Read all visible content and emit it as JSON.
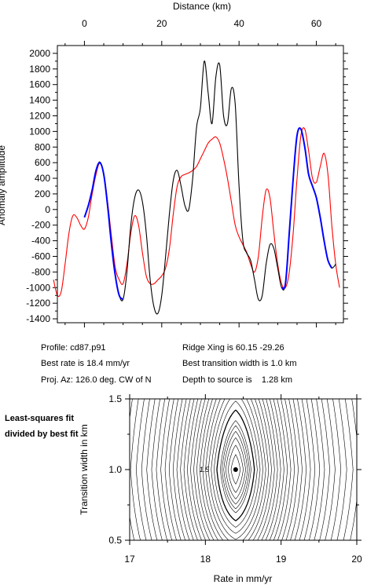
{
  "chart_data": [
    {
      "type": "line",
      "title": "",
      "xlabel": "Distance (km)",
      "ylabel": "Anomaly amplitude",
      "xlim": [
        -7,
        67
      ],
      "ylim": [
        -1450,
        2100
      ],
      "xticks": [
        0,
        20,
        40,
        60
      ],
      "yticks": [
        -1400,
        -1200,
        -1000,
        -800,
        -600,
        -400,
        -200,
        0,
        200,
        400,
        600,
        800,
        1000,
        1200,
        1400,
        1600,
        1800,
        2000
      ],
      "grid": false,
      "colors": {
        "observed": "#000000",
        "model": "#ff0000",
        "fit_window": "#0000ff"
      },
      "series": [
        {
          "id": "observed",
          "x": [
            0,
            1,
            2,
            3,
            4,
            5,
            6,
            7,
            8,
            9,
            10,
            11,
            12,
            13,
            14,
            15,
            16,
            17,
            18,
            19,
            20,
            21,
            22,
            23,
            24,
            25,
            26,
            27,
            28,
            29,
            30,
            31,
            32,
            33,
            34,
            35,
            36,
            37,
            38,
            39,
            40,
            41,
            42,
            43,
            44,
            45,
            46,
            47,
            48,
            49,
            50,
            51,
            52,
            53,
            54,
            55,
            56,
            57,
            58,
            59,
            60,
            61,
            62,
            63,
            64,
            65
          ],
          "values": [
            -100,
            50,
            250,
            500,
            610,
            450,
            50,
            -450,
            -850,
            -1100,
            -1150,
            -800,
            -200,
            150,
            250,
            100,
            -300,
            -900,
            -1250,
            -1330,
            -1100,
            -600,
            -50,
            380,
            500,
            300,
            50,
            0,
            400,
            1050,
            1300,
            1900,
            1500,
            1100,
            1700,
            1850,
            1200,
            1100,
            1550,
            1350,
            300,
            -400,
            -560,
            -650,
            -900,
            -1150,
            -1100,
            -700,
            -450,
            -500,
            -750,
            -1000,
            -950,
            -300,
            400,
            950,
            1030,
            800,
            450,
            300,
            150,
            -100,
            -400,
            -650,
            -750,
            -700
          ]
        },
        {
          "id": "model",
          "x": [
            -8,
            -7,
            -6,
            -5,
            -4,
            -3,
            -2,
            -1,
            0,
            1,
            2,
            3,
            4,
            5,
            6,
            7,
            8,
            9,
            10,
            11,
            12,
            13,
            14,
            15,
            16,
            17,
            18,
            19,
            20,
            21,
            22,
            23,
            24,
            25,
            26,
            27,
            28,
            29,
            30,
            31,
            32,
            33,
            34,
            35,
            36,
            37,
            38,
            39,
            40,
            41,
            42,
            43,
            44,
            45,
            46,
            47,
            48,
            49,
            50,
            51,
            52,
            53,
            54,
            55,
            56,
            57,
            58,
            59,
            60,
            61,
            62,
            63,
            64,
            65,
            66
          ],
          "values": [
            -900,
            -1100,
            -1050,
            -700,
            -300,
            -80,
            -100,
            -200,
            -250,
            -100,
            200,
            450,
            600,
            450,
            100,
            -350,
            -750,
            -900,
            -950,
            -700,
            -300,
            -80,
            -200,
            -550,
            -850,
            -950,
            -950,
            -900,
            -850,
            -750,
            -500,
            -50,
            300,
            420,
            450,
            470,
            500,
            550,
            650,
            750,
            850,
            900,
            930,
            850,
            650,
            400,
            100,
            -200,
            -350,
            -450,
            -550,
            -700,
            -800,
            -600,
            -100,
            250,
            150,
            -300,
            -700,
            -950,
            -1000,
            -800,
            -300,
            400,
            950,
            1030,
            750,
            400,
            350,
            550,
            720,
            450,
            -200,
            -700,
            -1000
          ]
        },
        {
          "id": "fit_window",
          "x": [
            0,
            1,
            2,
            3,
            4,
            5,
            6,
            7,
            8,
            9,
            10,
            51,
            52,
            53,
            54,
            55,
            56,
            57,
            58,
            59,
            60,
            61,
            62,
            63,
            64
          ],
          "values": [
            -100,
            50,
            250,
            500,
            600,
            450,
            50,
            -450,
            -850,
            -1100,
            -1150,
            -1000,
            -950,
            -300,
            400,
            950,
            1030,
            800,
            450,
            300,
            150,
            -100,
            -400,
            -650,
            -750
          ]
        }
      ]
    },
    {
      "type": "contour",
      "xlabel": "Rate in mm/yr",
      "ylabel": "Transition width in km",
      "xlim": [
        17,
        20
      ],
      "ylim": [
        0.5,
        1.5
      ],
      "xticks": [
        "17",
        "18",
        "19",
        "20"
      ],
      "yticks": [
        "0.5",
        "1.0",
        "1.5"
      ],
      "contour_label": "1.5",
      "best_fit": {
        "rate": 18.4,
        "width": 1.0
      }
    }
  ],
  "info": {
    "profile": "Profile: cd87.p91",
    "ridge_xing": "Ridge Xing is 60.15 -29.26",
    "best_rate": "Best rate is 18.4 mm/yr",
    "best_width": "Best transition width is 1.0 km",
    "proj_az": "Proj. Az: 126.0 deg. CW of N",
    "depth": "Depth to source is    1.28 km"
  },
  "caption": "Least-squares fit divided by best fit"
}
